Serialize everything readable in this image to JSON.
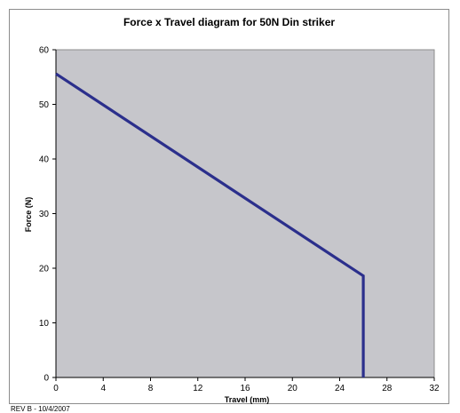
{
  "chart_data": {
    "type": "line",
    "title": "Force x Travel diagram for 50N Din striker",
    "xlabel": "Travel (mm)",
    "ylabel": "Force (N)",
    "xlim": [
      0,
      32
    ],
    "ylim": [
      0,
      60
    ],
    "xticks": [
      0,
      4,
      8,
      12,
      16,
      20,
      24,
      28,
      32
    ],
    "yticks": [
      0,
      10,
      20,
      30,
      40,
      50,
      60
    ],
    "grid": false,
    "plot_background": "#c6c6cb",
    "series": [
      {
        "color": "#2b2f8c",
        "points": [
          [
            0,
            55.6
          ],
          [
            26,
            18.6
          ],
          [
            26,
            0
          ]
        ]
      }
    ]
  },
  "footer": "REV B - 10/4/2007"
}
